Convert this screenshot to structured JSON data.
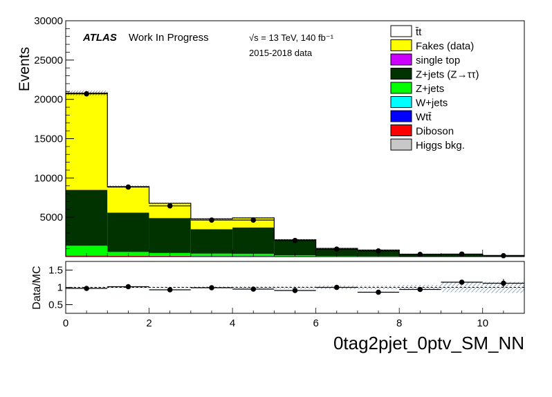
{
  "chart_data": [
    {
      "type": "bar",
      "stacked": true,
      "bin_edges": [
        0,
        1,
        2,
        3,
        4,
        5,
        6,
        7,
        8,
        9,
        10,
        11
      ],
      "xlim": [
        0,
        11
      ],
      "ylim": [
        0,
        30000
      ],
      "ylabel": "Events",
      "y_ticks": [
        "5000",
        "10000",
        "15000",
        "20000",
        "25000",
        "30000"
      ],
      "y_tick_values": [
        5000,
        10000,
        15000,
        20000,
        25000,
        30000
      ],
      "series": [
        {
          "name": "Higgs bkg.",
          "color": "#c8c8c8",
          "values": [
            50,
            40,
            30,
            20,
            20,
            10,
            5,
            5,
            2,
            2,
            1
          ]
        },
        {
          "name": "Diboson",
          "color": "#ff0000",
          "values": [
            80,
            60,
            50,
            40,
            40,
            20,
            10,
            10,
            5,
            5,
            2
          ]
        },
        {
          "name": "Wtt̄",
          "color": "#0000ff",
          "values": [
            20,
            15,
            10,
            10,
            10,
            5,
            3,
            3,
            1,
            1,
            1
          ]
        },
        {
          "name": "W+jets",
          "color": "#00ffff",
          "values": [
            30,
            20,
            15,
            10,
            10,
            5,
            3,
            3,
            1,
            1,
            1
          ]
        },
        {
          "name": "Z+jets",
          "color": "#00ff00",
          "values": [
            1200,
            450,
            350,
            300,
            280,
            130,
            60,
            50,
            25,
            25,
            10
          ]
        },
        {
          "name": "Z+jets (Z→ττ)",
          "color": "#003300",
          "values": [
            7100,
            5000,
            4450,
            3100,
            3340,
            1930,
            920,
            730,
            250,
            240,
            110
          ]
        },
        {
          "name": "single top",
          "color": "#cc00ff",
          "values": [
            10,
            5,
            5,
            5,
            5,
            2,
            1,
            1,
            1,
            1,
            0
          ]
        },
        {
          "name": "Fakes (data)",
          "color": "#ffff00",
          "values": [
            12300,
            3300,
            1850,
            1300,
            1200,
            40,
            40,
            30,
            20,
            20,
            10
          ]
        },
        {
          "name": "t̄t",
          "color": "#ffffff",
          "values": [
            10,
            10,
            20,
            20,
            25,
            10,
            10,
            10,
            5,
            5,
            5
          ]
        }
      ],
      "data": {
        "x": [
          0.5,
          1.5,
          2.5,
          3.5,
          4.5,
          5.5,
          6.5,
          7.5,
          8.5,
          9.5,
          10.5
        ],
        "y": [
          20700,
          8850,
          6450,
          4650,
          4650,
          2050,
          950,
          720,
          280,
          320,
          120
        ]
      }
    },
    {
      "type": "scatter",
      "ylabel": "Data/MC",
      "xlabel": "0tag2pjet_0ptv_SM_NN",
      "xlim": [
        0,
        11
      ],
      "ylim": [
        0.25,
        1.75
      ],
      "y_ticks": [
        "0.5",
        "1",
        "1.5"
      ],
      "y_tick_values": [
        0.5,
        1.0,
        1.5
      ],
      "x_ticks": [
        "0",
        "2",
        "4",
        "6",
        "8",
        "10"
      ],
      "x_tick_values": [
        0,
        2,
        4,
        6,
        8,
        10
      ],
      "x": [
        0.5,
        1.5,
        2.5,
        3.5,
        4.5,
        5.5,
        6.5,
        7.5,
        8.5,
        9.5,
        10.5
      ],
      "y": [
        0.97,
        1.02,
        0.93,
        0.99,
        0.95,
        0.91,
        1.0,
        0.86,
        0.94,
        1.15,
        1.12
      ],
      "err": [
        0.01,
        0.015,
        0.015,
        0.02,
        0.02,
        0.03,
        0.03,
        0.04,
        0.05,
        0.06,
        0.12
      ]
    }
  ],
  "labels": {
    "atlas": "ATLAS",
    "work_in_progress": "Work In Progress",
    "energy_lumi": "√s = 13 TeV, 140 fb⁻¹",
    "data_years": "2015-2018 data"
  },
  "legend": [
    {
      "label": "t̄t",
      "color": "#ffffff"
    },
    {
      "label": "Fakes (data)",
      "color": "#ffff00"
    },
    {
      "label": "single top",
      "color": "#cc00ff"
    },
    {
      "label": "Z+jets (Z→ττ)",
      "color": "#003300"
    },
    {
      "label": "Z+jets",
      "color": "#00ff00"
    },
    {
      "label": "W+jets",
      "color": "#00ffff"
    },
    {
      "label": "Wtt̄",
      "color": "#0000ff"
    },
    {
      "label": "Diboson",
      "color": "#ff0000"
    },
    {
      "label": "Higgs bkg.",
      "color": "#c8c8c8"
    }
  ]
}
